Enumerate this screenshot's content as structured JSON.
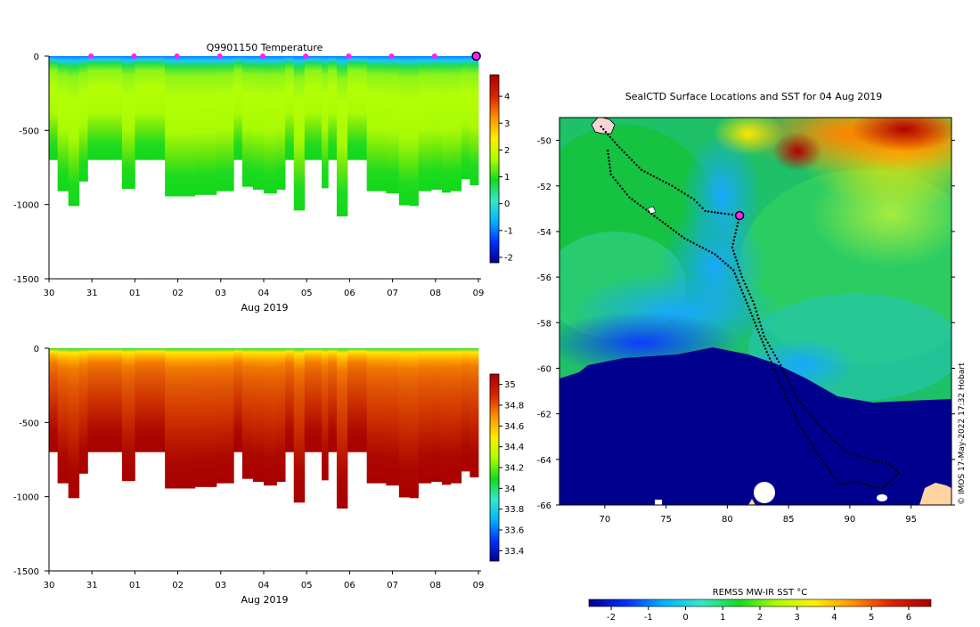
{
  "chart_data": [
    {
      "type": "heatmap",
      "title": "Q9901150  Temperature",
      "xlabel": "Aug 2019",
      "x_ticks": [
        "30",
        "31",
        "01",
        "02",
        "03",
        "04",
        "05",
        "06",
        "07",
        "08",
        "09"
      ],
      "y_ticks": [
        0,
        -500,
        -1000,
        -1500
      ],
      "ylim": [
        -1500,
        0
      ],
      "colorbar_ticks": [
        4,
        3,
        2,
        1,
        0,
        -1,
        -2
      ],
      "colorbar_range": [
        -2.2,
        4.8
      ],
      "colormap": [
        "#00008f",
        "#0031ff",
        "#00b4ff",
        "#35e8c8",
        "#11dc1d",
        "#aaff00",
        "#ffee00",
        "#ff9400",
        "#e22500",
        "#a80000"
      ],
      "surface_marker_days": [
        1,
        2,
        3,
        4,
        5,
        6,
        7,
        8,
        9,
        10
      ],
      "latest_marker_day": 9.95,
      "profiles": [
        {
          "day": 0.0,
          "depth": 700
        },
        {
          "day": 0.2,
          "depth": 910
        },
        {
          "day": 0.45,
          "depth": 1010
        },
        {
          "day": 0.7,
          "depth": 845
        },
        {
          "day": 0.9,
          "depth": 700
        },
        {
          "day": 1.15,
          "depth": 700
        },
        {
          "day": 1.45,
          "depth": 700
        },
        {
          "day": 1.7,
          "depth": 895
        },
        {
          "day": 2.0,
          "depth": 700
        },
        {
          "day": 2.3,
          "depth": 700
        },
        {
          "day": 2.7,
          "depth": 945
        },
        {
          "day": 3.0,
          "depth": 945
        },
        {
          "day": 3.4,
          "depth": 935
        },
        {
          "day": 3.9,
          "depth": 910
        },
        {
          "day": 4.3,
          "depth": 700
        },
        {
          "day": 4.5,
          "depth": 880
        },
        {
          "day": 4.75,
          "depth": 900
        },
        {
          "day": 5.0,
          "depth": 925
        },
        {
          "day": 5.3,
          "depth": 900
        },
        {
          "day": 5.5,
          "depth": 700
        },
        {
          "day": 5.7,
          "depth": 1040
        },
        {
          "day": 5.95,
          "depth": 700
        },
        {
          "day": 6.35,
          "depth": 890
        },
        {
          "day": 6.5,
          "depth": 700
        },
        {
          "day": 6.7,
          "depth": 1080
        },
        {
          "day": 6.95,
          "depth": 700
        },
        {
          "day": 7.4,
          "depth": 910
        },
        {
          "day": 7.85,
          "depth": 925
        },
        {
          "day": 8.15,
          "depth": 1005
        },
        {
          "day": 8.4,
          "depth": 1010
        },
        {
          "day": 8.6,
          "depth": 910
        },
        {
          "day": 8.9,
          "depth": 900
        },
        {
          "day": 9.15,
          "depth": 920
        },
        {
          "day": 9.35,
          "depth": 910
        },
        {
          "day": 9.6,
          "depth": 830
        },
        {
          "day": 9.8,
          "depth": 870
        }
      ]
    },
    {
      "type": "heatmap",
      "title": "",
      "xlabel": "Aug 2019",
      "x_ticks": [
        "30",
        "31",
        "01",
        "02",
        "03",
        "04",
        "05",
        "06",
        "07",
        "08",
        "09"
      ],
      "y_ticks": [
        0,
        -500,
        -1000,
        -1500
      ],
      "ylim": [
        -1500,
        0
      ],
      "colorbar_ticks": [
        35,
        34.8,
        34.6,
        34.4,
        34.2,
        34,
        33.8,
        33.6,
        33.4
      ],
      "colorbar_range": [
        33.3,
        35.1
      ],
      "colormap": [
        "#00008f",
        "#0031ff",
        "#00b4ff",
        "#35e8c8",
        "#11dc1d",
        "#aaff00",
        "#ffee00",
        "#ff9400",
        "#e22500",
        "#a80000"
      ],
      "profiles": "same as temperature section"
    },
    {
      "type": "heatmap",
      "title": "SealCTD Surface Locations and SST for 04 Aug 2019",
      "xlabel": "",
      "ylabel": "",
      "x_ticks": [
        70,
        75,
        80,
        85,
        90,
        95
      ],
      "y_ticks": [
        -50,
        -52,
        -54,
        -56,
        -58,
        -60,
        -62,
        -64,
        -66
      ],
      "xlim": [
        66.3,
        98.3
      ],
      "ylim": [
        -66,
        -49
      ],
      "colorbar_label": "REMSS MW-IR SST °C",
      "colorbar_ticks": [
        -2,
        -1,
        0,
        1,
        2,
        3,
        4,
        5,
        6
      ],
      "colorbar_range": [
        -2.6,
        6.6
      ],
      "colormap": [
        "#00008f",
        "#0031ff",
        "#00b4ff",
        "#35e8c8",
        "#11dc1d",
        "#aaff00",
        "#ffee00",
        "#ff9400",
        "#e22500",
        "#a80000"
      ],
      "current_position": {
        "lon": 81.0,
        "lat": -53.3
      },
      "track": [
        {
          "lon": 69.7,
          "lat": -49.4
        },
        {
          "lon": 71.0,
          "lat": -50.2
        },
        {
          "lon": 73.0,
          "lat": -51.3
        },
        {
          "lon": 75.5,
          "lat": -52.0
        },
        {
          "lon": 77.3,
          "lat": -52.6
        },
        {
          "lon": 78.2,
          "lat": -53.1
        },
        {
          "lon": 79.5,
          "lat": -53.2
        },
        {
          "lon": 81.0,
          "lat": -53.3
        },
        {
          "lon": 80.4,
          "lat": -54.7
        },
        {
          "lon": 81.2,
          "lat": -56.0
        },
        {
          "lon": 82.2,
          "lat": -57.2
        },
        {
          "lon": 83.0,
          "lat": -58.6
        },
        {
          "lon": 84.5,
          "lat": -60.0
        },
        {
          "lon": 85.8,
          "lat": -61.4
        },
        {
          "lon": 87.5,
          "lat": -62.5
        },
        {
          "lon": 89.5,
          "lat": -63.6
        },
        {
          "lon": 91.5,
          "lat": -64.0
        },
        {
          "lon": 93.2,
          "lat": -64.2
        },
        {
          "lon": 94.0,
          "lat": -64.6
        },
        {
          "lon": 92.6,
          "lat": -65.3
        },
        {
          "lon": 90.6,
          "lat": -65.0
        },
        {
          "lon": 89.2,
          "lat": -65.1
        },
        {
          "lon": 88.5,
          "lat": -64.6
        },
        {
          "lon": 87.2,
          "lat": -63.6
        },
        {
          "lon": 86.0,
          "lat": -62.6
        },
        {
          "lon": 84.6,
          "lat": -61.0
        },
        {
          "lon": 83.0,
          "lat": -59.0
        },
        {
          "lon": 81.5,
          "lat": -57.0
        },
        {
          "lon": 80.5,
          "lat": -55.7
        },
        {
          "lon": 79.0,
          "lat": -55.0
        },
        {
          "lon": 76.5,
          "lat": -54.3
        },
        {
          "lon": 74.5,
          "lat": -53.5
        },
        {
          "lon": 72.0,
          "lat": -52.5
        },
        {
          "lon": 70.5,
          "lat": -51.5
        },
        {
          "lon": 70.2,
          "lat": -50.3
        }
      ],
      "credit": "© IMOS 17-May-2022 17:32 Hobart"
    }
  ]
}
